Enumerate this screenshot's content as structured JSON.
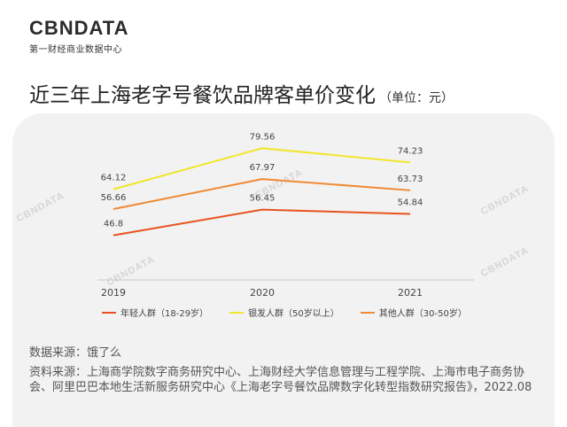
{
  "logo": {
    "main": "CBNDATA",
    "sub": "第一财经商业数据中心"
  },
  "title": {
    "text": "近三年上海老字号餐饮品牌客单价变化",
    "unit": "（单位：元）"
  },
  "watermark": "CBNDATA",
  "chart_data": {
    "type": "line",
    "title": "近三年上海老字号餐饮品牌客单价变化",
    "unit": "元",
    "categories": [
      "2019",
      "2020",
      "2021"
    ],
    "series": [
      {
        "name": "年轻人群（18-29岁）",
        "values": [
          46.8,
          56.45,
          54.84
        ],
        "color": "#e8531f"
      },
      {
        "name": "银发人群（50岁以上）",
        "values": [
          64.12,
          79.56,
          74.23
        ],
        "color": "#f2e62a"
      },
      {
        "name": "其他人群（30-50岁）",
        "values": [
          56.66,
          67.97,
          63.73
        ],
        "color": "#f08a35"
      }
    ],
    "ylim": [
      30,
      90
    ],
    "grid": false,
    "legend": "bottom"
  },
  "sources": {
    "data_source": "数据来源：饿了么",
    "material_source": "资料来源：上海商学院数字商务研究中心、上海财经大学信息管理与工程学院、上海市电子商务协会、阿里巴巴本地生活新服务研究中心《上海老字号餐饮品牌数字化转型指数研究报告》，2022.08"
  }
}
